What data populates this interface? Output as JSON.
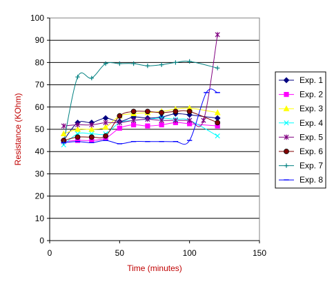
{
  "chart_data": {
    "type": "line",
    "title": "",
    "xlabel": "Time (minutes)",
    "ylabel": "Resistance (KOhm)",
    "xlim": [
      0,
      150
    ],
    "ylim": [
      0,
      100
    ],
    "x_ticks": [
      0,
      50,
      100,
      150
    ],
    "y_ticks": [
      0,
      10,
      20,
      30,
      40,
      50,
      60,
      70,
      80,
      90,
      100
    ],
    "grid": "horizontal major gridlines",
    "legend_position": "right",
    "axis_title_color": "#c00000",
    "series": [
      {
        "name": "Exp. 1",
        "color": "#000080",
        "marker": "diamond",
        "smooth": true,
        "points": [
          [
            10,
            45
          ],
          [
            20,
            53
          ],
          [
            30,
            53
          ],
          [
            40,
            55
          ],
          [
            50,
            53.5
          ],
          [
            60,
            55.5
          ],
          [
            70,
            55
          ],
          [
            80,
            55.5
          ],
          [
            90,
            57
          ],
          [
            100,
            56.5
          ],
          [
            120,
            55
          ]
        ]
      },
      {
        "name": "Exp. 2",
        "color": "#ff00ff",
        "marker": "square",
        "smooth": true,
        "points": [
          [
            10,
            44.5
          ],
          [
            20,
            45
          ],
          [
            30,
            45
          ],
          [
            40,
            46
          ],
          [
            50,
            50.5
          ],
          [
            60,
            52
          ],
          [
            70,
            51.5
          ],
          [
            80,
            52
          ],
          [
            90,
            53
          ],
          [
            100,
            52.5
          ],
          [
            120,
            51.5
          ]
        ]
      },
      {
        "name": "Exp. 3",
        "color": "#ffff00",
        "marker": "triangle",
        "smooth": true,
        "points": [
          [
            10,
            48
          ],
          [
            20,
            50
          ],
          [
            30,
            50
          ],
          [
            40,
            51
          ],
          [
            50,
            56
          ],
          [
            60,
            57
          ],
          [
            70,
            57.5
          ],
          [
            80,
            58
          ],
          [
            90,
            59
          ],
          [
            100,
            59.5
          ],
          [
            120,
            57.5
          ]
        ]
      },
      {
        "name": "Exp. 4",
        "color": "#00ffff",
        "marker": "x",
        "smooth": true,
        "points": [
          [
            10,
            43
          ],
          [
            20,
            48
          ],
          [
            30,
            48
          ],
          [
            40,
            48
          ],
          [
            50,
            53
          ],
          [
            60,
            54
          ],
          [
            70,
            54.5
          ],
          [
            80,
            55
          ],
          [
            90,
            54.5
          ],
          [
            100,
            54
          ],
          [
            120,
            47
          ]
        ]
      },
      {
        "name": "Exp. 5",
        "color": "#800080",
        "marker": "star",
        "smooth": true,
        "points": [
          [
            10,
            51.5
          ],
          [
            20,
            52
          ],
          [
            30,
            52
          ],
          [
            40,
            53
          ],
          [
            50,
            53
          ],
          [
            60,
            54
          ],
          [
            70,
            54.5
          ],
          [
            80,
            54
          ],
          [
            90,
            54
          ],
          [
            100,
            54
          ],
          [
            110,
            54
          ],
          [
            120,
            92.5
          ]
        ]
      },
      {
        "name": "Exp. 6",
        "color": "#800000",
        "marker": "circle",
        "smooth": true,
        "points": [
          [
            10,
            45
          ],
          [
            20,
            46.5
          ],
          [
            30,
            46.5
          ],
          [
            40,
            47
          ],
          [
            50,
            56
          ],
          [
            60,
            58
          ],
          [
            70,
            58
          ],
          [
            80,
            57.5
          ],
          [
            90,
            58
          ],
          [
            100,
            58
          ],
          [
            120,
            53
          ]
        ]
      },
      {
        "name": "Exp. 7",
        "color": "#008080",
        "marker": "plus",
        "smooth": true,
        "points": [
          [
            10,
            44
          ],
          [
            20,
            73.5
          ],
          [
            30,
            73
          ],
          [
            40,
            79.5
          ],
          [
            50,
            79.5
          ],
          [
            60,
            79.5
          ],
          [
            70,
            78.5
          ],
          [
            80,
            79
          ],
          [
            90,
            80
          ],
          [
            100,
            80.5
          ],
          [
            120,
            77.5
          ]
        ]
      },
      {
        "name": "Exp. 8",
        "color": "#0000ff",
        "marker": "dash",
        "smooth": true,
        "points": [
          [
            10,
            44
          ],
          [
            20,
            44.5
          ],
          [
            30,
            44
          ],
          [
            40,
            45
          ],
          [
            50,
            43.5
          ],
          [
            60,
            44.5
          ],
          [
            70,
            44.5
          ],
          [
            80,
            44.5
          ],
          [
            90,
            44.5
          ],
          [
            100,
            45
          ],
          [
            112,
            66.5
          ],
          [
            120,
            66.5
          ]
        ]
      }
    ]
  }
}
